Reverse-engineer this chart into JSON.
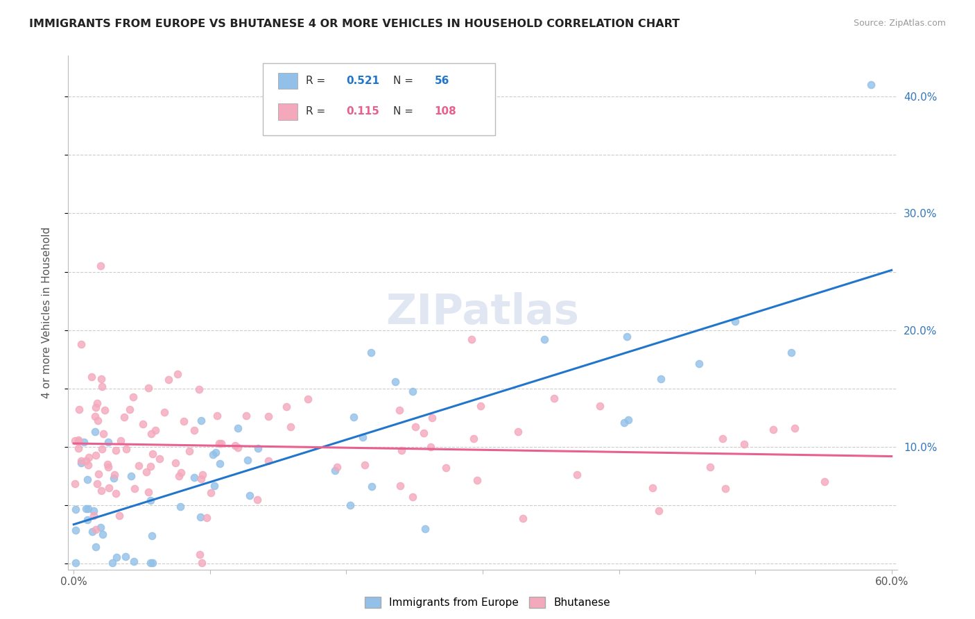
{
  "title": "IMMIGRANTS FROM EUROPE VS BHUTANESE 4 OR MORE VEHICLES IN HOUSEHOLD CORRELATION CHART",
  "source": "Source: ZipAtlas.com",
  "ylabel": "4 or more Vehicles in Household",
  "legend_R1": "0.521",
  "legend_N1": "56",
  "legend_R2": "0.115",
  "legend_N2": "108",
  "color_europe": "#92C0E8",
  "color_bhutanese": "#F4A8BC",
  "line_color_europe": "#2176CC",
  "line_color_bhutanese": "#E86090",
  "watermark": "ZIPatlas"
}
